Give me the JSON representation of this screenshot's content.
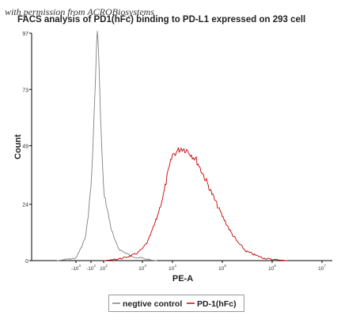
{
  "watermark": "with permission from ACROBiosystems",
  "chart_data": {
    "type": "line",
    "title": "FACS analysis of PD1(hFc) binding to PD-L1 expressed on 293 cell",
    "xlabel": "PE-A",
    "ylabel": "Count",
    "ylim": [
      0,
      97
    ],
    "y_ticks": [
      "0",
      "24",
      "49",
      "73",
      "97"
    ],
    "x_scale": "biexponential",
    "x_ticks": [
      {
        "base": "-10",
        "exp": "3"
      },
      {
        "base": "-10",
        "exp": "2"
      },
      {
        "base": "10",
        "exp": "2"
      },
      {
        "base": "10",
        "exp": "3"
      },
      {
        "base": "10",
        "exp": "4"
      },
      {
        "base": "10",
        "exp": "5"
      },
      {
        "base": "10",
        "exp": "6"
      },
      {
        "base": "10",
        "exp": "7"
      }
    ],
    "x_tick_values": [
      -1000,
      -100,
      100,
      1000,
      10000,
      100000,
      1000000,
      10000000
    ],
    "grid": false,
    "legend_position": "bottom",
    "series": [
      {
        "name": "negtive control",
        "color": "#808080",
        "x": [
          -2000,
          -1000,
          -700,
          -500,
          -400,
          -300,
          -250,
          -200,
          -150,
          -100,
          -70,
          -50,
          -30,
          -10,
          0,
          10,
          20,
          30,
          50,
          70,
          100,
          130,
          160,
          200,
          250,
          300,
          400,
          500,
          700,
          1000,
          1500,
          2000,
          3000
        ],
        "y": [
          0,
          1,
          3,
          5,
          6,
          8,
          10,
          13,
          20,
          32,
          47,
          62,
          78,
          93,
          97,
          95,
          88,
          80,
          63,
          48,
          30,
          20,
          13,
          8,
          5,
          4,
          3,
          2,
          1.5,
          1,
          0.5,
          0.2,
          0
        ]
      },
      {
        "name": "PD-1(hFc)",
        "color": "#cc0000",
        "x": [
          100,
          200,
          300,
          500,
          700,
          1000,
          1500,
          2000,
          3000,
          5000,
          7000,
          10000,
          15000,
          20000,
          30000,
          50000,
          70000,
          100000,
          150000,
          200000,
          300000,
          500000,
          700000,
          1000000,
          2000000
        ],
        "y": [
          0,
          0.5,
          1,
          2,
          3,
          5,
          8,
          12,
          18,
          28,
          37,
          45,
          48,
          47,
          43,
          33,
          26,
          19,
          12,
          8,
          4,
          2,
          1,
          0.5,
          0
        ]
      }
    ]
  }
}
